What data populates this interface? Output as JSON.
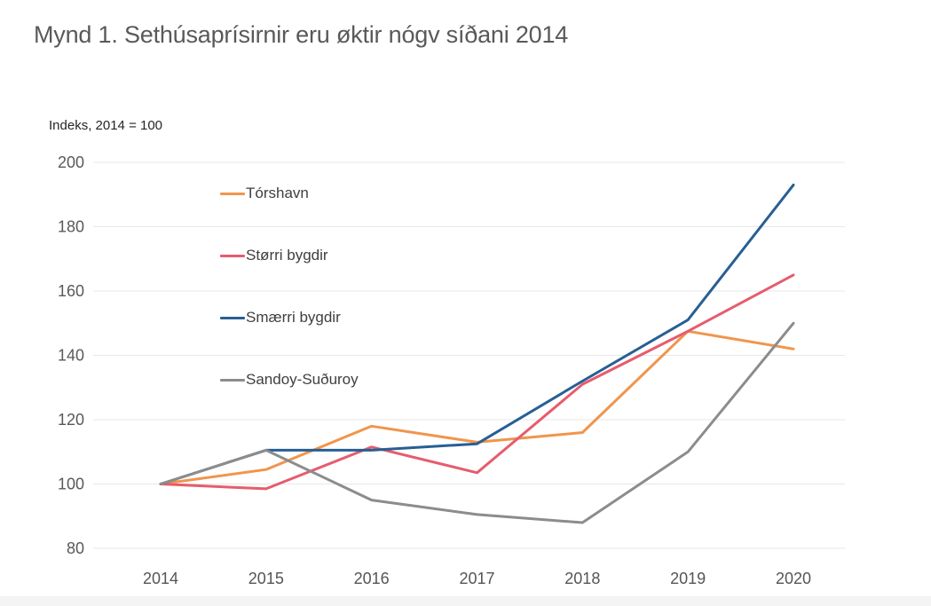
{
  "page": {
    "bottom_band_color": "#f4f4f4"
  },
  "chart_data": {
    "type": "line",
    "title": "Mynd 1. Sethúsaprísirnir eru øktir nógv síðani 2014",
    "subtitle": "Indeks, 2014 = 100",
    "categories": [
      "2014",
      "2015",
      "2016",
      "2017",
      "2018",
      "2019",
      "2020"
    ],
    "series": [
      {
        "name": "Tórshavn",
        "color": "#F0954C",
        "values": [
          100,
          104.5,
          118,
          113,
          116,
          147.5,
          142
        ]
      },
      {
        "name": "Størri bygdir",
        "color": "#E65C6E",
        "values": [
          100,
          98.5,
          111.5,
          103.5,
          131,
          147.5,
          165
        ]
      },
      {
        "name": "Smærri bygdir",
        "color": "#275F94",
        "values": [
          100,
          110.5,
          110.5,
          112.5,
          132,
          151,
          193
        ]
      },
      {
        "name": "Sandoy-Suðuroy",
        "color": "#8C8C8C",
        "values": [
          100,
          110.5,
          95,
          90.5,
          88,
          110,
          150
        ]
      }
    ],
    "ylim": [
      80,
      200
    ],
    "yticks": [
      80,
      100,
      120,
      140,
      160,
      180,
      200
    ],
    "xlabel": "",
    "ylabel": "Indeks, 2014 = 100",
    "grid": "horizontal",
    "gridline_color": "#e7e7e7",
    "legend_position": "inside-top-left",
    "line_width": 3
  }
}
